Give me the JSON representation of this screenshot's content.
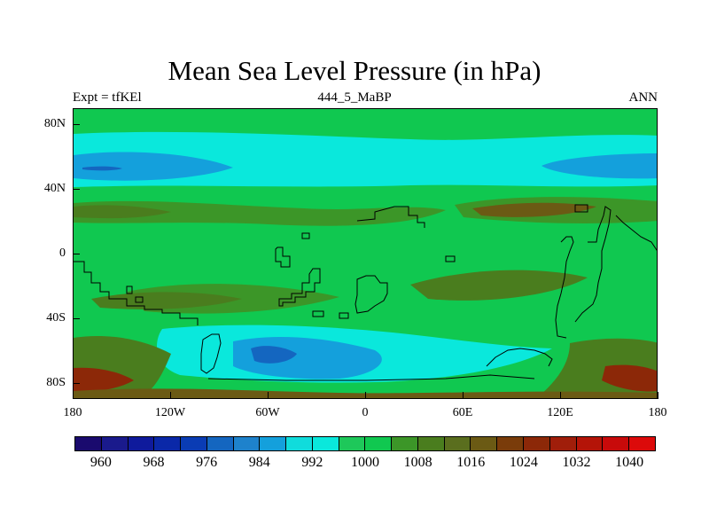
{
  "title": "Mean Sea Level Pressure (in hPa)",
  "left_string": "Expt = tfKEl",
  "center_string": "444_5_MaBP",
  "right_string": "ANN",
  "axes": {
    "lat_labels": [
      "80N",
      "40N",
      "0",
      "40S",
      "80S"
    ],
    "lat_values": [
      80,
      40,
      0,
      -40,
      -80
    ],
    "lon_labels": [
      "180",
      "120W",
      "60W",
      "0",
      "60E",
      "120E",
      "180"
    ],
    "lon_values": [
      -180,
      -120,
      -60,
      0,
      60,
      120,
      180
    ],
    "lat_range": [
      -90,
      90
    ],
    "lon_range": [
      -180,
      180
    ]
  },
  "colorbar": {
    "labels": [
      "960",
      "968",
      "976",
      "984",
      "992",
      "1000",
      "1008",
      "1016",
      "1024",
      "1032",
      "1040"
    ],
    "colors": [
      "#1a0a6e",
      "#1a1a8c",
      "#0f1a9c",
      "#0a28a8",
      "#0a3cb4",
      "#1466c0",
      "#1e82cc",
      "#14a0dc",
      "#10dcdc",
      "#0ae8dc",
      "#1ec85a",
      "#10c850",
      "#3c9628",
      "#4a7d1e",
      "#5a6e1e",
      "#6b5a14",
      "#7a3c0a",
      "#8c2808",
      "#a01e0a",
      "#b41408",
      "#c80a0a",
      "#dc0a0a"
    ]
  },
  "map_colors": {
    "ocean_base": "#10c850",
    "light_cyan": "#0ae8dc",
    "medium_blue": "#14a0dc",
    "deep_blue": "#1466c0",
    "olive": "#4a7d1e",
    "brown": "#6b5a14",
    "dark_red": "#8c2808",
    "coast": "#000000"
  }
}
